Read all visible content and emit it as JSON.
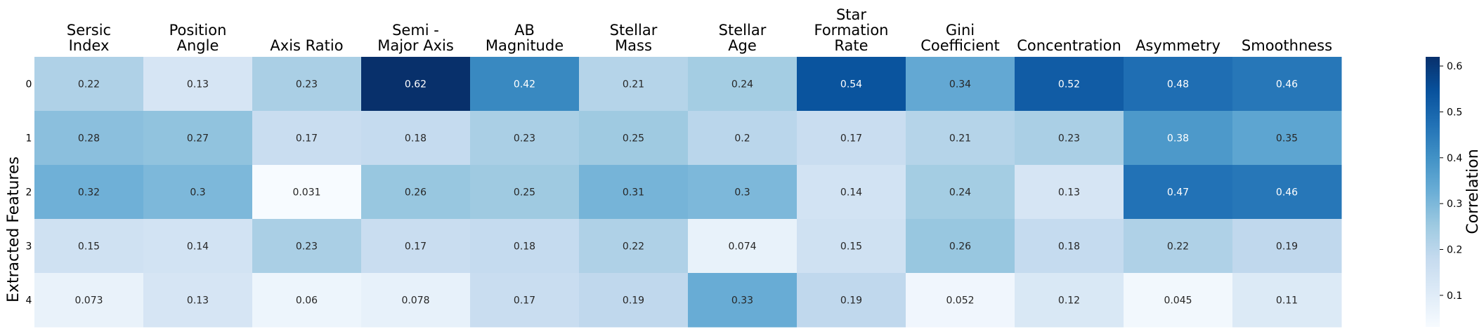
{
  "chart_data": {
    "type": "heatmap",
    "columns": [
      [
        "Sersic",
        "Index"
      ],
      [
        "Position",
        "Angle"
      ],
      [
        "Axis Ratio"
      ],
      [
        "Semi -",
        "Major Axis"
      ],
      [
        "AB",
        "Magnitude"
      ],
      [
        "Stellar",
        "Mass"
      ],
      [
        "Stellar",
        "Age"
      ],
      [
        "Star",
        "Formation",
        "Rate"
      ],
      [
        "Gini",
        "Coefficient"
      ],
      [
        "Concentration"
      ],
      [
        "Asymmetry"
      ],
      [
        "Smoothness"
      ]
    ],
    "rows": [
      "0",
      "1",
      "2",
      "3",
      "4"
    ],
    "values": [
      [
        0.22,
        0.13,
        0.23,
        0.62,
        0.42,
        0.21,
        0.24,
        0.54,
        0.34,
        0.52,
        0.48,
        0.46
      ],
      [
        0.28,
        0.27,
        0.17,
        0.18,
        0.23,
        0.25,
        0.2,
        0.17,
        0.21,
        0.23,
        0.38,
        0.35
      ],
      [
        0.32,
        0.3,
        0.031,
        0.26,
        0.25,
        0.31,
        0.3,
        0.14,
        0.24,
        0.13,
        0.47,
        0.46
      ],
      [
        0.15,
        0.14,
        0.23,
        0.17,
        0.18,
        0.22,
        0.074,
        0.15,
        0.26,
        0.18,
        0.22,
        0.19
      ],
      [
        0.073,
        0.13,
        0.06,
        0.078,
        0.17,
        0.19,
        0.33,
        0.19,
        0.052,
        0.12,
        0.045,
        0.11
      ]
    ],
    "value_labels": [
      [
        "0.22",
        "0.13",
        "0.23",
        "0.62",
        "0.42",
        "0.21",
        "0.24",
        "0.54",
        "0.34",
        "0.52",
        "0.48",
        "0.46"
      ],
      [
        "0.28",
        "0.27",
        "0.17",
        "0.18",
        "0.23",
        "0.25",
        "0.2",
        "0.17",
        "0.21",
        "0.23",
        "0.38",
        "0.35"
      ],
      [
        "0.32",
        "0.3",
        "0.031",
        "0.26",
        "0.25",
        "0.31",
        "0.3",
        "0.14",
        "0.24",
        "0.13",
        "0.47",
        "0.46"
      ],
      [
        "0.15",
        "0.14",
        "0.23",
        "0.17",
        "0.18",
        "0.22",
        "0.074",
        "0.15",
        "0.26",
        "0.18",
        "0.22",
        "0.19"
      ],
      [
        "0.073",
        "0.13",
        "0.06",
        "0.078",
        "0.17",
        "0.19",
        "0.33",
        "0.19",
        "0.052",
        "0.12",
        "0.045",
        "0.11"
      ]
    ],
    "ylabel": "Extracted Features",
    "colorbar": {
      "label": "Correlation",
      "range": [
        0.031,
        0.62
      ],
      "ticks": [
        0.1,
        0.2,
        0.3,
        0.4,
        0.5,
        0.6
      ],
      "tick_labels": [
        "0.1",
        "0.2",
        "0.3",
        "0.4",
        "0.5",
        "0.6"
      ],
      "colormap": "Blues",
      "colormap_stops": [
        "#f7fbff",
        "#deebf7",
        "#c6dbef",
        "#9ecae1",
        "#6baed6",
        "#4292c6",
        "#2171b5",
        "#08519c",
        "#08306b"
      ]
    },
    "column_labels_position": "top",
    "grid": false
  }
}
